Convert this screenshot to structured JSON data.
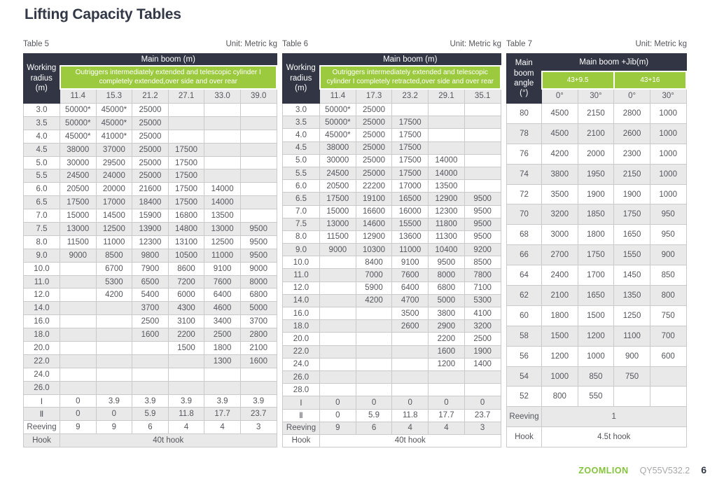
{
  "page": {
    "title": "Lifting Capacity Tables",
    "footer": {
      "brand": "ZOOMLION",
      "model": "QY55V532.2",
      "page_number": "6"
    }
  },
  "colors": {
    "header_dark": "#323644",
    "accent_green": "#9cca3f",
    "row_stripe": "#e9e9ea",
    "brand_green": "#84c33c"
  },
  "tables": [
    {
      "label": "Table 5",
      "unit": "Unit: Metric kg",
      "header": {
        "stub": "Working radius (m)",
        "group": "Main boom (m)",
        "green_cells": [
          {
            "text": "Outriggers intermediately extended and telescopic cylinder I completely extended,over side and over rear",
            "span": 6
          }
        ],
        "columns": [
          "11.4",
          "15.3",
          "21.2",
          "27.1",
          "33.0",
          "39.0"
        ]
      },
      "rows": [
        {
          "label": "3.0",
          "values": [
            "50000*",
            "45000*",
            "25000",
            "",
            "",
            ""
          ]
        },
        {
          "label": "3.5",
          "values": [
            "50000*",
            "45000*",
            "25000",
            "",
            "",
            ""
          ]
        },
        {
          "label": "4.0",
          "values": [
            "45000*",
            "41000*",
            "25000",
            "",
            "",
            ""
          ]
        },
        {
          "label": "4.5",
          "values": [
            "38000",
            "37000",
            "25000",
            "17500",
            "",
            ""
          ]
        },
        {
          "label": "5.0",
          "values": [
            "30000",
            "29500",
            "25000",
            "17500",
            "",
            ""
          ]
        },
        {
          "label": "5.5",
          "values": [
            "24500",
            "24000",
            "25000",
            "17500",
            "",
            ""
          ]
        },
        {
          "label": "6.0",
          "values": [
            "20500",
            "20000",
            "21600",
            "17500",
            "14000",
            ""
          ]
        },
        {
          "label": "6.5",
          "values": [
            "17500",
            "17000",
            "18400",
            "17500",
            "14000",
            ""
          ]
        },
        {
          "label": "7.0",
          "values": [
            "15000",
            "14500",
            "15900",
            "16800",
            "13500",
            ""
          ]
        },
        {
          "label": "7.5",
          "values": [
            "13000",
            "12500",
            "13900",
            "14800",
            "13000",
            "9500"
          ]
        },
        {
          "label": "8.0",
          "values": [
            "11500",
            "11000",
            "12300",
            "13100",
            "12500",
            "9500"
          ]
        },
        {
          "label": "9.0",
          "values": [
            "9000",
            "8500",
            "9800",
            "10500",
            "11000",
            "9500"
          ]
        },
        {
          "label": "10.0",
          "values": [
            "",
            "6700",
            "7900",
            "8600",
            "9100",
            "9000"
          ]
        },
        {
          "label": "11.0",
          "values": [
            "",
            "5300",
            "6500",
            "7200",
            "7600",
            "8000"
          ]
        },
        {
          "label": "12.0",
          "values": [
            "",
            "4200",
            "5400",
            "6000",
            "6400",
            "6800"
          ]
        },
        {
          "label": "14.0",
          "values": [
            "",
            "",
            "3700",
            "4300",
            "4600",
            "5000"
          ]
        },
        {
          "label": "16.0",
          "values": [
            "",
            "",
            "2500",
            "3100",
            "3400",
            "3700"
          ]
        },
        {
          "label": "18.0",
          "values": [
            "",
            "",
            "1600",
            "2200",
            "2500",
            "2800"
          ]
        },
        {
          "label": "20.0",
          "values": [
            "",
            "",
            "",
            "1500",
            "1800",
            "2100"
          ]
        },
        {
          "label": "22.0",
          "values": [
            "",
            "",
            "",
            "",
            "1300",
            "1600"
          ]
        },
        {
          "label": "24.0",
          "values": [
            "",
            "",
            "",
            "",
            "",
            ""
          ]
        },
        {
          "label": "26.0",
          "values": [
            "",
            "",
            "",
            "",
            "",
            ""
          ]
        }
      ],
      "extra_rows": [
        {
          "label": "Ⅰ",
          "values": [
            "0",
            "3.9",
            "3.9",
            "3.9",
            "3.9",
            "3.9"
          ]
        },
        {
          "label": "Ⅱ",
          "values": [
            "0",
            "0",
            "5.9",
            "11.8",
            "17.7",
            "23.7"
          ]
        },
        {
          "label": "Reeving",
          "values": [
            "9",
            "9",
            "6",
            "4",
            "4",
            "3"
          ]
        }
      ],
      "span_rows": [
        {
          "label": "Hook",
          "value": "40t hook"
        }
      ]
    },
    {
      "label": "Table 6",
      "unit": "Unit: Metric kg",
      "header": {
        "stub": "Working radius (m)",
        "group": "Main boom (m)",
        "green_cells": [
          {
            "text": "Outriggers intermediately extended and telescopic cylinder I completely retracted,over side and over rear",
            "span": 5
          }
        ],
        "columns": [
          "11.4",
          "17.3",
          "23.2",
          "29.1",
          "35.1"
        ]
      },
      "rows": [
        {
          "label": "3.0",
          "values": [
            "50000*",
            "25000",
            "",
            "",
            ""
          ]
        },
        {
          "label": "3.5",
          "values": [
            "50000*",
            "25000",
            "17500",
            "",
            ""
          ]
        },
        {
          "label": "4.0",
          "values": [
            "45000*",
            "25000",
            "17500",
            "",
            ""
          ]
        },
        {
          "label": "4.5",
          "values": [
            "38000",
            "25000",
            "17500",
            "",
            ""
          ]
        },
        {
          "label": "5.0",
          "values": [
            "30000",
            "25000",
            "17500",
            "14000",
            ""
          ]
        },
        {
          "label": "5.5",
          "values": [
            "24500",
            "25000",
            "17500",
            "14000",
            ""
          ]
        },
        {
          "label": "6.0",
          "values": [
            "20500",
            "22200",
            "17000",
            "13500",
            ""
          ]
        },
        {
          "label": "6.5",
          "values": [
            "17500",
            "19100",
            "16500",
            "12900",
            "9500"
          ]
        },
        {
          "label": "7.0",
          "values": [
            "15000",
            "16600",
            "16000",
            "12300",
            "9500"
          ]
        },
        {
          "label": "7.5",
          "values": [
            "13000",
            "14600",
            "15500",
            "11800",
            "9500"
          ]
        },
        {
          "label": "8.0",
          "values": [
            "11500",
            "12900",
            "13600",
            "11300",
            "9500"
          ]
        },
        {
          "label": "9.0",
          "values": [
            "9000",
            "10300",
            "11000",
            "10400",
            "9200"
          ]
        },
        {
          "label": "10.0",
          "values": [
            "",
            "8400",
            "9100",
            "9500",
            "8500"
          ]
        },
        {
          "label": "11.0",
          "values": [
            "",
            "7000",
            "7600",
            "8000",
            "7800"
          ]
        },
        {
          "label": "12.0",
          "values": [
            "",
            "5900",
            "6400",
            "6800",
            "7100"
          ]
        },
        {
          "label": "14.0",
          "values": [
            "",
            "4200",
            "4700",
            "5000",
            "5300"
          ]
        },
        {
          "label": "16.0",
          "values": [
            "",
            "",
            "3500",
            "3800",
            "4100"
          ]
        },
        {
          "label": "18.0",
          "values": [
            "",
            "",
            "2600",
            "2900",
            "3200"
          ]
        },
        {
          "label": "20.0",
          "values": [
            "",
            "",
            "",
            "2200",
            "2500"
          ]
        },
        {
          "label": "22.0",
          "values": [
            "",
            "",
            "",
            "1600",
            "1900"
          ]
        },
        {
          "label": "24.0",
          "values": [
            "",
            "",
            "",
            "1200",
            "1400"
          ]
        },
        {
          "label": "26.0",
          "values": [
            "",
            "",
            "",
            "",
            ""
          ]
        },
        {
          "label": "28.0",
          "values": [
            "",
            "",
            "",
            "",
            ""
          ]
        }
      ],
      "extra_rows": [
        {
          "label": "Ⅰ",
          "values": [
            "0",
            "0",
            "0",
            "0",
            "0"
          ]
        },
        {
          "label": "Ⅱ",
          "values": [
            "0",
            "5.9",
            "11.8",
            "17.7",
            "23.7"
          ]
        },
        {
          "label": "Reeving",
          "values": [
            "9",
            "6",
            "4",
            "4",
            "3"
          ]
        }
      ],
      "span_rows": [
        {
          "label": "Hook",
          "value": "40t hook"
        }
      ]
    },
    {
      "label": "Table 7",
      "unit": "Unit: Metric kg",
      "header": {
        "stub": "Main boom angle (°)",
        "group": "Main boom +Jib(m)",
        "green_cells": [
          {
            "text": "43+9.5",
            "span": 2
          },
          {
            "text": "43+16",
            "span": 2
          }
        ],
        "columns": [
          "0°",
          "30°",
          "0°",
          "30°"
        ]
      },
      "rows": [
        {
          "label": "80",
          "values": [
            "4500",
            "2150",
            "2800",
            "1000"
          ]
        },
        {
          "label": "78",
          "values": [
            "4500",
            "2100",
            "2600",
            "1000"
          ]
        },
        {
          "label": "76",
          "values": [
            "4200",
            "2000",
            "2300",
            "1000"
          ]
        },
        {
          "label": "74",
          "values": [
            "3800",
            "1950",
            "2150",
            "1000"
          ]
        },
        {
          "label": "72",
          "values": [
            "3500",
            "1900",
            "1900",
            "1000"
          ]
        },
        {
          "label": "70",
          "values": [
            "3200",
            "1850",
            "1750",
            "950"
          ]
        },
        {
          "label": "68",
          "values": [
            "3000",
            "1800",
            "1650",
            "950"
          ]
        },
        {
          "label": "66",
          "values": [
            "2700",
            "1750",
            "1550",
            "900"
          ]
        },
        {
          "label": "64",
          "values": [
            "2400",
            "1700",
            "1450",
            "850"
          ]
        },
        {
          "label": "62",
          "values": [
            "2100",
            "1650",
            "1350",
            "800"
          ]
        },
        {
          "label": "60",
          "values": [
            "1800",
            "1500",
            "1250",
            "750"
          ]
        },
        {
          "label": "58",
          "values": [
            "1500",
            "1200",
            "1100",
            "700"
          ]
        },
        {
          "label": "56",
          "values": [
            "1200",
            "1000",
            "900",
            "600"
          ]
        },
        {
          "label": "54",
          "values": [
            "1000",
            "850",
            "750",
            ""
          ]
        },
        {
          "label": "52",
          "values": [
            "800",
            "550",
            "",
            ""
          ]
        }
      ],
      "extra_rows": [],
      "span_rows": [
        {
          "label": "Reeving",
          "value": "1"
        },
        {
          "label": "Hook",
          "value": "4.5t hook"
        }
      ]
    }
  ]
}
